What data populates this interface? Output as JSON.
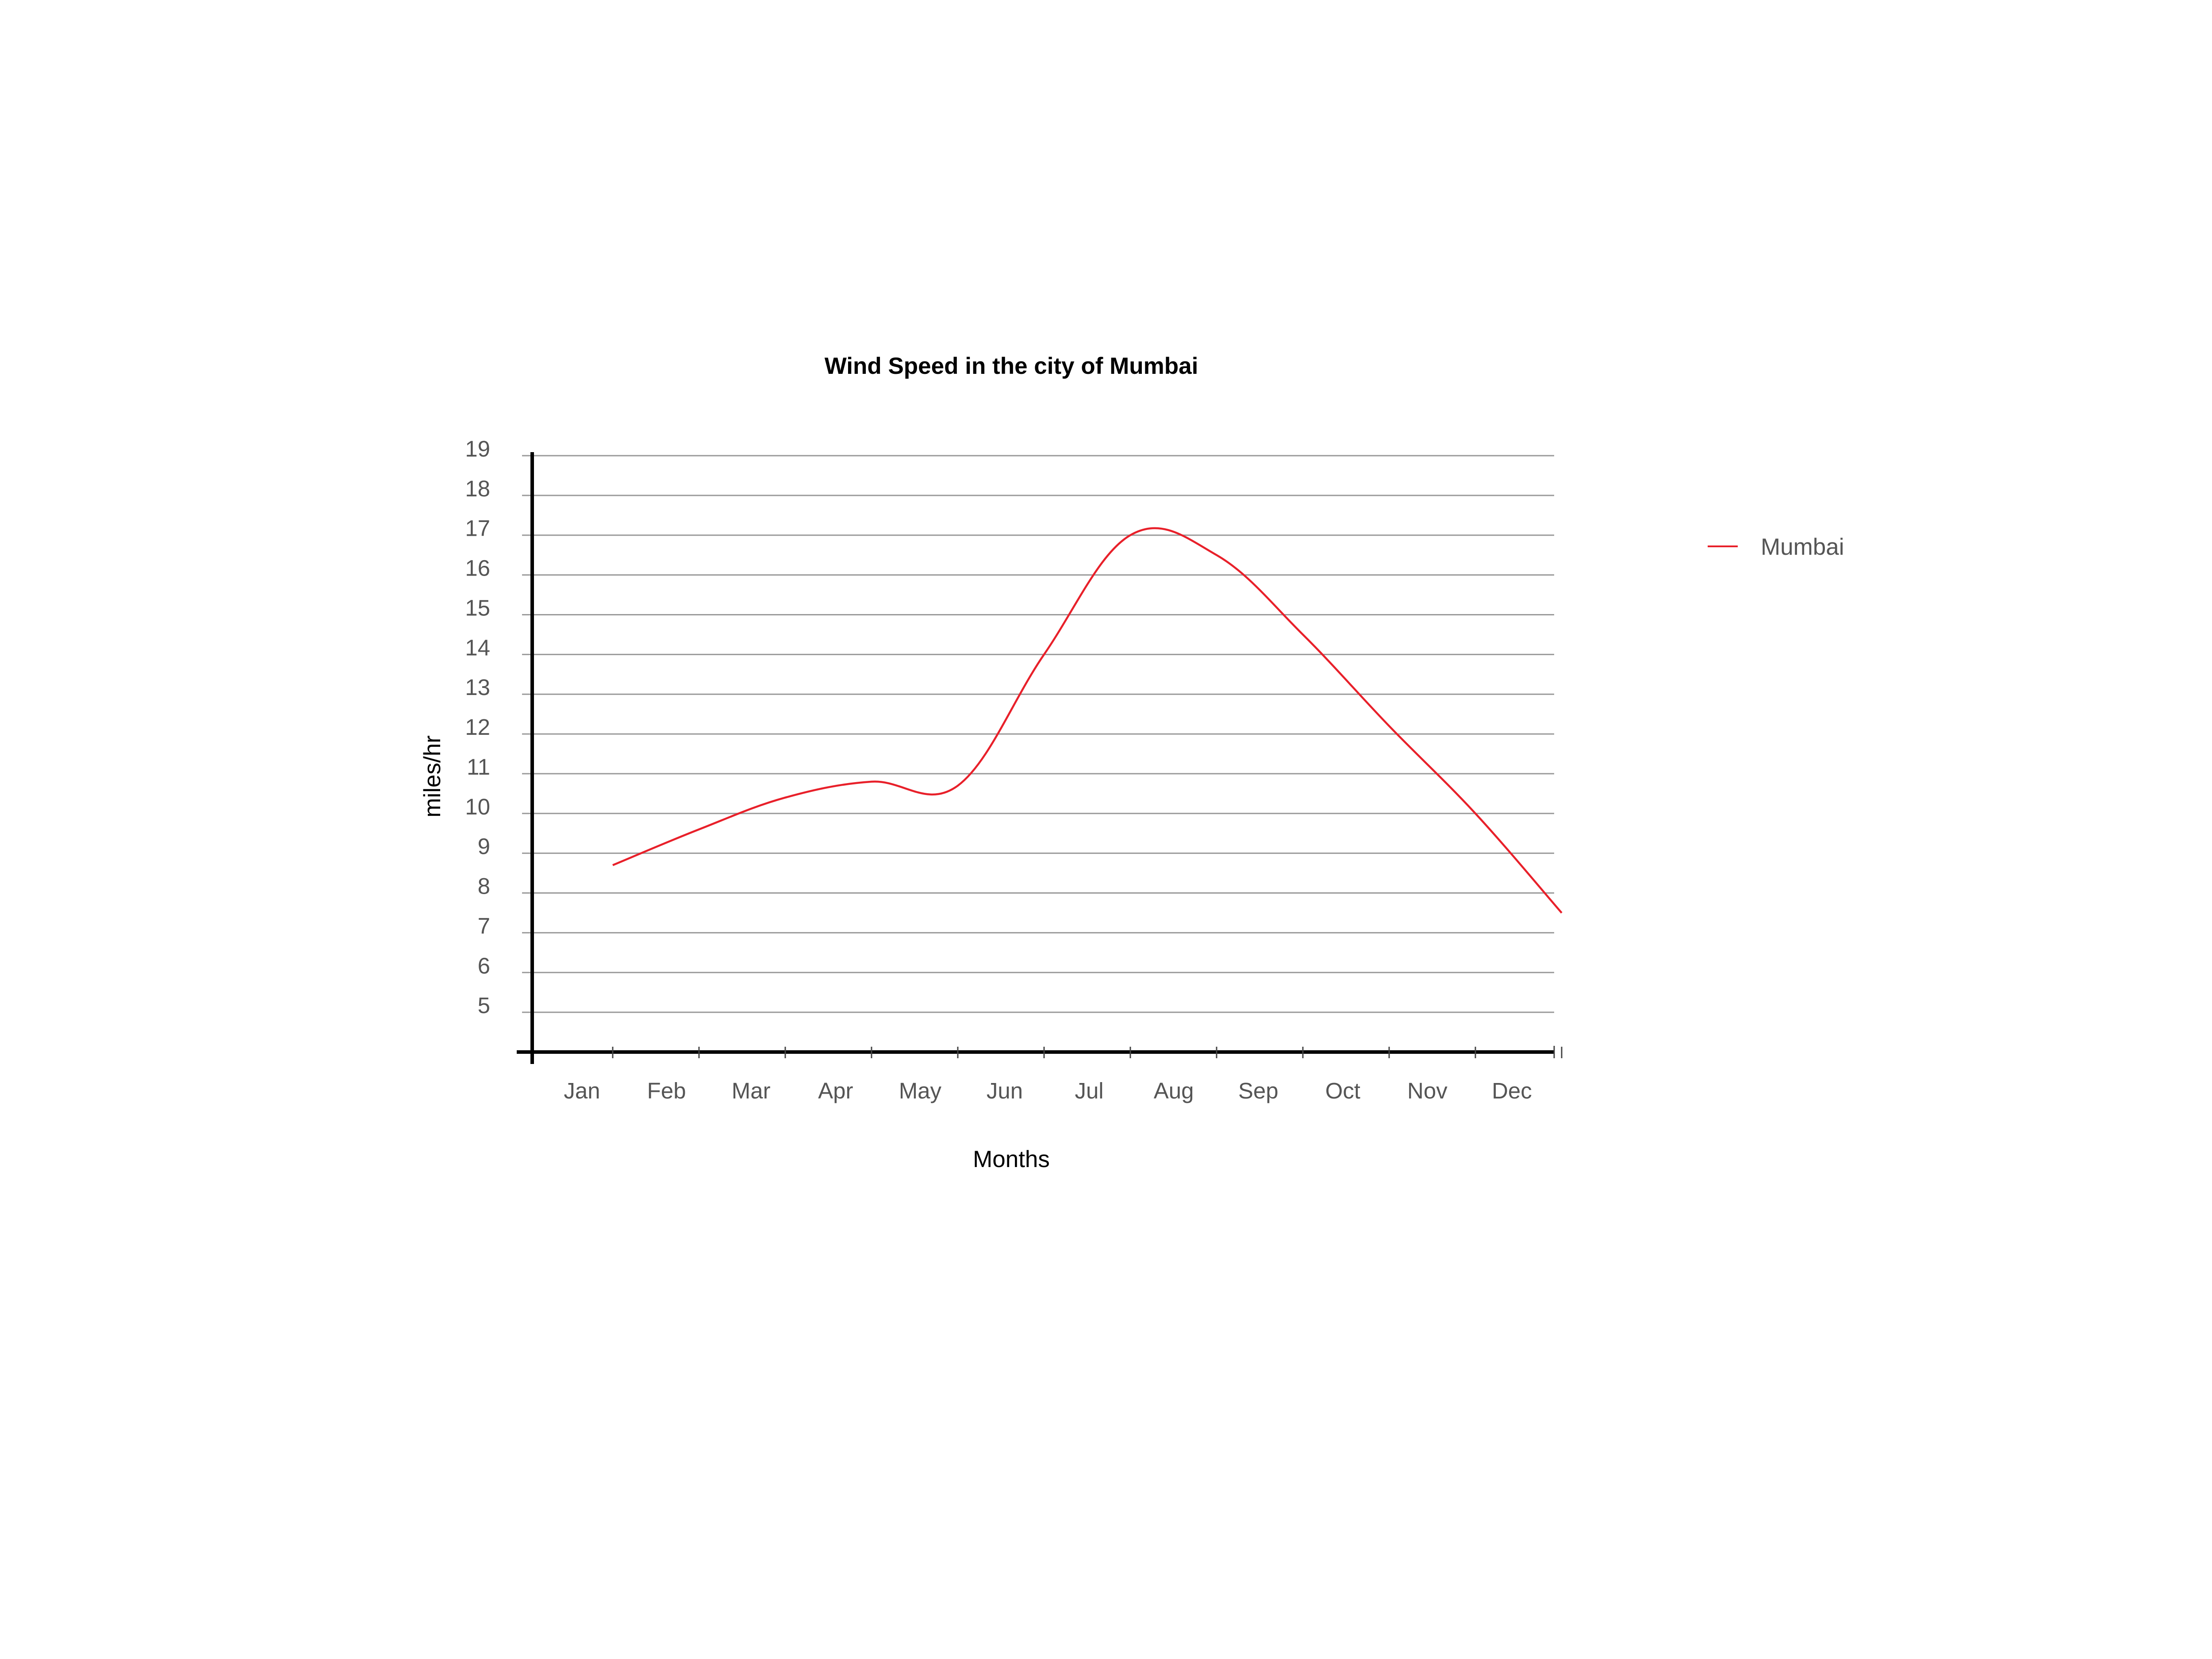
{
  "chart_data": {
    "type": "line",
    "title": "Wind Speed in the city of Mumbai",
    "xlabel": "Months",
    "ylabel": "miles/hr",
    "categories": [
      "Jan",
      "Feb",
      "Mar",
      "Apr",
      "May",
      "Jun",
      "Jul",
      "Aug",
      "Sep",
      "Oct",
      "Nov",
      "Dec"
    ],
    "y_ticks": [
      5,
      6,
      7,
      8,
      9,
      10,
      11,
      12,
      13,
      14,
      15,
      16,
      17,
      18,
      19
    ],
    "ylim": [
      4,
      19
    ],
    "grid": true,
    "legend_position": "right",
    "series": [
      {
        "name": "Mumbai",
        "color": "#e8202a",
        "values": [
          8.7,
          9.6,
          10.4,
          10.8,
          10.7,
          14.0,
          17.0,
          16.5,
          14.5,
          12.2,
          10.0,
          7.5
        ]
      }
    ]
  }
}
